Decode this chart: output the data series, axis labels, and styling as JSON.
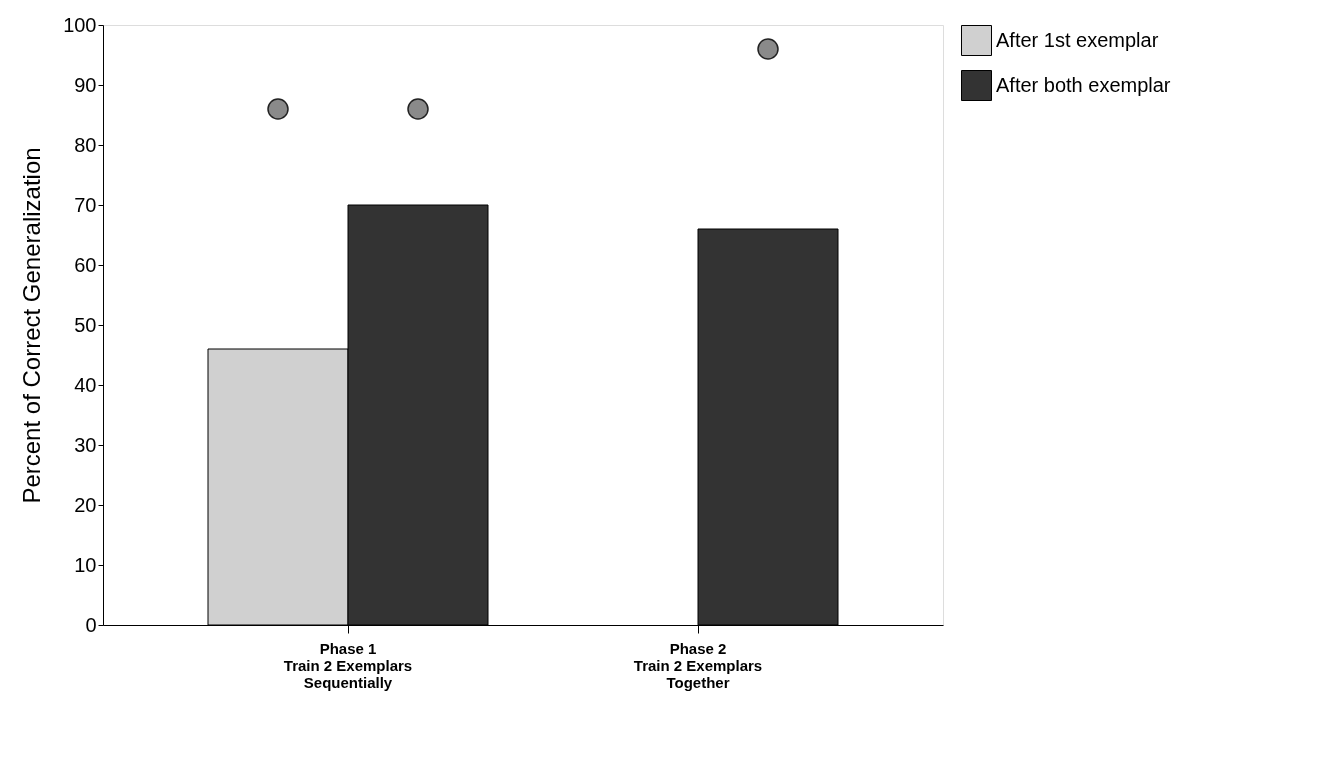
{
  "chart_data": {
    "type": "bar",
    "ylabel": "Percent of Correct Generalization",
    "categories": [
      "Phase 1\n\nTrain 2 Exemplars\nSequentially",
      "Phase 2\n\nTrain 2 Exemplars\nTogether"
    ],
    "series": [
      {
        "name": "After 1st exemplar",
        "color": "#d0d0d0",
        "values": [
          46,
          null
        ]
      },
      {
        "name": "After both exemplar",
        "color": "#333333",
        "values": [
          70,
          66
        ]
      },
      {
        "type": "scatter",
        "color": "#8a8a8a",
        "values": [
          86,
          null
        ]
      },
      {
        "type": "scatter",
        "color": "#8a8a8a",
        "values": [
          86,
          96
        ]
      }
    ],
    "ylim": [
      0,
      100
    ],
    "yticks": [
      0,
      10,
      20,
      30,
      40,
      50,
      60,
      70,
      80,
      90,
      100
    ],
    "grid": false,
    "legend": "top right",
    "marker": "circle"
  }
}
